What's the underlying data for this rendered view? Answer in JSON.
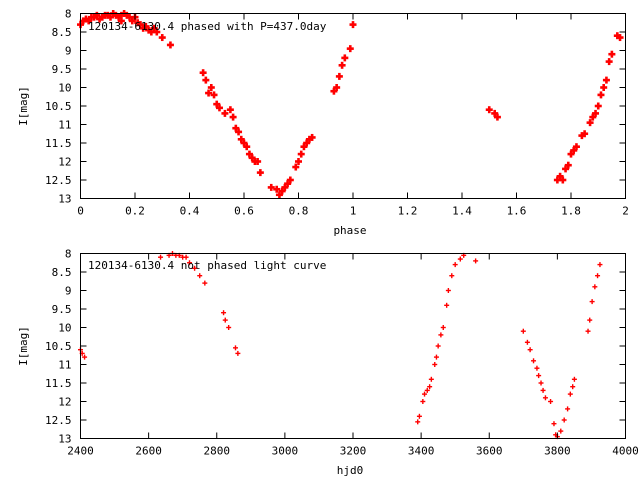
{
  "chart_data": [
    {
      "type": "scatter",
      "title": "120134-6130.4 phased with P=437.0day",
      "xlabel": "phase",
      "ylabel": "I[mag]",
      "xlim": [
        0,
        2
      ],
      "ylim": [
        13,
        8
      ],
      "y_inverted": true,
      "grid": false,
      "marker_color": "#ff0000",
      "marker_shape": "plus-thick",
      "xticks": [
        0,
        0.2,
        0.4,
        0.6,
        0.8,
        1,
        1.2,
        1.4,
        1.6,
        1.8,
        2
      ],
      "xtick_labels": [
        "0",
        "0.2",
        "0.4",
        "0.6",
        "0.8",
        "1",
        "1.2",
        "1.4",
        "1.6",
        "1.8",
        "2"
      ],
      "yticks": [
        8,
        8.5,
        9,
        9.5,
        10,
        10.5,
        11,
        11.5,
        12,
        12.5,
        13
      ],
      "ytick_labels": [
        "8",
        "8.5",
        "9",
        "9.5",
        "10",
        "10.5",
        "11",
        "11.5",
        "12",
        "12.5",
        "13"
      ],
      "series": [
        {
          "x": [
            0.0,
            0.01,
            0.02,
            0.03,
            0.04,
            0.05,
            0.06,
            0.07,
            0.08,
            0.09,
            0.1,
            0.11,
            0.12,
            0.13,
            0.14,
            0.15,
            0.15,
            0.16,
            0.17,
            0.18,
            0.19,
            0.2,
            0.21,
            0.22,
            0.23,
            0.24,
            0.25,
            0.26,
            0.27,
            0.28,
            0.3,
            0.33,
            0.45,
            0.46,
            0.47,
            0.48,
            0.49,
            0.5,
            0.51,
            0.53,
            0.55,
            0.56,
            0.57,
            0.58,
            0.59,
            0.6,
            0.61,
            0.62,
            0.63,
            0.64,
            0.65,
            0.66,
            0.7,
            0.72,
            0.73,
            0.74,
            0.75,
            0.76,
            0.77,
            0.79,
            0.8,
            0.81,
            0.82,
            0.83,
            0.84,
            0.85,
            0.93,
            0.94,
            0.95,
            0.96,
            0.97,
            0.99,
            1.0,
            1.5,
            1.52,
            1.53,
            1.75,
            1.76,
            1.77,
            1.78,
            1.79,
            1.8,
            1.81,
            1.82,
            1.84,
            1.85,
            1.87,
            1.88,
            1.89,
            1.9,
            1.91,
            1.92,
            1.93,
            1.94,
            1.95,
            1.97,
            1.98
          ],
          "y": [
            8.3,
            8.2,
            8.15,
            8.2,
            8.1,
            8.1,
            8.05,
            8.15,
            8.1,
            8.05,
            8.05,
            8.1,
            8.0,
            8.05,
            8.1,
            8.2,
            8.05,
            8.0,
            8.05,
            8.1,
            8.2,
            8.1,
            8.25,
            8.3,
            8.4,
            8.35,
            8.45,
            8.5,
            8.4,
            8.5,
            8.65,
            8.85,
            9.6,
            9.8,
            10.15,
            10.0,
            10.2,
            10.45,
            10.55,
            10.7,
            10.6,
            10.8,
            11.1,
            11.2,
            11.4,
            11.5,
            11.6,
            11.8,
            11.9,
            12.0,
            12.0,
            12.3,
            12.7,
            12.75,
            12.9,
            12.8,
            12.7,
            12.6,
            12.5,
            12.15,
            12.0,
            11.8,
            11.6,
            11.5,
            11.4,
            11.35,
            10.1,
            10.0,
            9.7,
            9.4,
            9.2,
            8.95,
            8.3,
            10.6,
            10.7,
            10.8,
            12.5,
            12.4,
            12.5,
            12.2,
            12.1,
            11.8,
            11.7,
            11.6,
            11.3,
            11.25,
            10.95,
            10.8,
            10.7,
            10.5,
            10.2,
            10.0,
            9.8,
            9.3,
            9.1,
            8.6,
            8.65
          ]
        }
      ]
    },
    {
      "type": "scatter",
      "title": "120134-6130.4 not phased light curve",
      "xlabel": "hjd0",
      "ylabel": "I[mag]",
      "xlim": [
        2400,
        4000
      ],
      "ylim": [
        13,
        8
      ],
      "y_inverted": true,
      "grid": false,
      "marker_color": "#ff0000",
      "marker_shape": "plus-thin",
      "xticks": [
        2400,
        2600,
        2800,
        3000,
        3200,
        3400,
        3600,
        3800,
        4000
      ],
      "xtick_labels": [
        "2400",
        "2600",
        "2800",
        "3000",
        "3200",
        "3400",
        "3600",
        "3800",
        "4000"
      ],
      "yticks": [
        8,
        8.5,
        9,
        9.5,
        10,
        10.5,
        11,
        11.5,
        12,
        12.5,
        13
      ],
      "ytick_labels": [
        "8",
        "8.5",
        "9",
        "9.5",
        "10",
        "10.5",
        "11",
        "11.5",
        "12",
        "12.5",
        "13"
      ],
      "series": [
        {
          "x": [
            2400,
            2405,
            2412,
            2635,
            2660,
            2670,
            2680,
            2690,
            2700,
            2710,
            2720,
            2735,
            2750,
            2765,
            2820,
            2825,
            2835,
            2855,
            2862,
            3390,
            3395,
            3405,
            3410,
            3418,
            3425,
            3430,
            3440,
            3445,
            3450,
            3458,
            3465,
            3475,
            3480,
            3490,
            3500,
            3515,
            3525,
            3560,
            3700,
            3712,
            3720,
            3730,
            3740,
            3745,
            3752,
            3758,
            3765,
            3780,
            3790,
            3795,
            3800,
            3810,
            3820,
            3830,
            3838,
            3845,
            3850,
            3890,
            3895,
            3902,
            3910,
            3918,
            3925
          ],
          "y": [
            10.6,
            10.7,
            10.8,
            8.1,
            8.05,
            8.0,
            8.05,
            8.05,
            8.1,
            8.1,
            8.25,
            8.4,
            8.6,
            8.8,
            9.6,
            9.8,
            10.0,
            10.55,
            10.7,
            12.55,
            12.4,
            12.0,
            11.8,
            11.7,
            11.6,
            11.4,
            11.0,
            10.8,
            10.5,
            10.2,
            10.0,
            9.4,
            9.0,
            8.6,
            8.3,
            8.15,
            8.05,
            8.2,
            10.1,
            10.4,
            10.6,
            10.9,
            11.1,
            11.3,
            11.5,
            11.7,
            11.9,
            12.0,
            12.6,
            12.9,
            12.95,
            12.8,
            12.5,
            12.2,
            11.8,
            11.6,
            11.4,
            10.1,
            9.8,
            9.3,
            8.9,
            8.6,
            8.3
          ]
        }
      ]
    }
  ]
}
